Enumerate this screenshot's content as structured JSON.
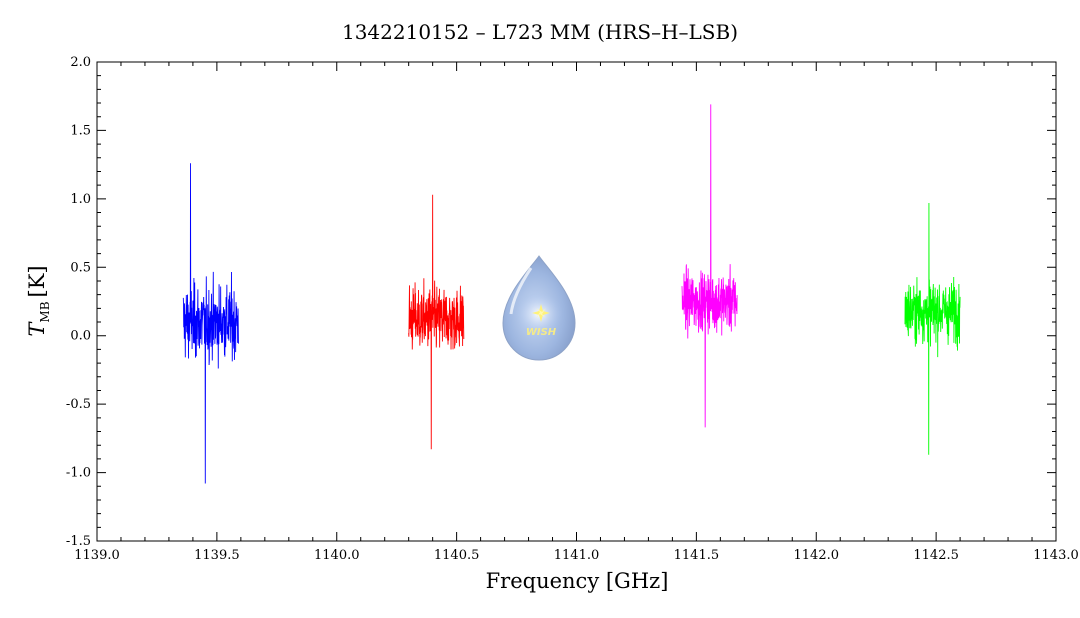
{
  "chart_data": {
    "type": "line",
    "title": "1342210152 – L723 MM (HRS–H–LSB)",
    "xlabel": "Frequency [GHz]",
    "ylabel_main": "T",
    "ylabel_sub": "MB",
    "ylabel_unit": "[K]",
    "xlim": [
      1139.0,
      1143.0
    ],
    "ylim": [
      -1.5,
      2.0
    ],
    "x_ticks": [
      1139.0,
      1139.5,
      1140.0,
      1140.5,
      1141.0,
      1141.5,
      1142.0,
      1142.5,
      1143.0
    ],
    "x_tick_labels": [
      "1139.0",
      "1139.5",
      "1140.0",
      "1140.5",
      "1141.0",
      "1141.5",
      "1142.0",
      "1142.5",
      "1143.0"
    ],
    "y_ticks": [
      -1.5,
      -1.0,
      -0.5,
      0.0,
      0.5,
      1.0,
      1.5,
      2.0
    ],
    "y_tick_labels": [
      "-1.5",
      "-1.0",
      "-0.5",
      "0.0",
      "0.5",
      "1.0",
      "1.5",
      "2.0"
    ],
    "grid": false,
    "series": [
      {
        "color": "#0000ff",
        "x_range": [
          1139.36,
          1139.59
        ],
        "baseline": 0.1,
        "noise_sigma": 0.25,
        "min": -1.08,
        "max": 1.26,
        "peak_x": 1139.39
      },
      {
        "color": "#ff0000",
        "x_range": [
          1140.3,
          1140.53
        ],
        "baseline": 0.12,
        "noise_sigma": 0.22,
        "min": -0.83,
        "max": 1.03,
        "peak_x": 1140.4
      },
      {
        "color": "#ff00ff",
        "x_range": [
          1141.44,
          1141.67
        ],
        "baseline": 0.25,
        "noise_sigma": 0.2,
        "min": -0.67,
        "max": 1.69,
        "peak_x": 1141.56
      },
      {
        "color": "#00ff00",
        "x_range": [
          1142.37,
          1142.6
        ],
        "baseline": 0.18,
        "noise_sigma": 0.2,
        "min": -0.87,
        "max": 0.97,
        "peak_x": 1142.47
      }
    ],
    "logo_text": "WISH"
  }
}
